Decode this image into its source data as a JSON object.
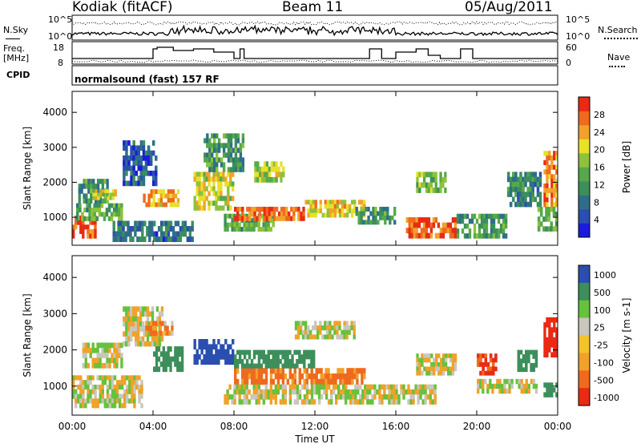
{
  "header": {
    "station": "Kodiak (fitACF)",
    "beam": "Beam 11",
    "date": "05/Aug/2011"
  },
  "status_panels": {
    "nsky_label": "N.Sky",
    "nsearch_label": "N.Search",
    "noise_ticks": [
      "10^5",
      "10^0"
    ],
    "freq_label_1": "Freq.",
    "freq_label_2": "[MHz]",
    "freq_ticks": [
      "18",
      "8"
    ],
    "nave_label": "Nave",
    "nave_ticks": [
      "60",
      "0"
    ],
    "cpid_label": "CPID",
    "cpid_text": "normalsound (fast) 157 RF"
  },
  "colors": {
    "power_scale": [
      "#1b1bde",
      "#2a4fb0",
      "#2f6e8a",
      "#3c8f5a",
      "#56a84a",
      "#8cc23c",
      "#e9e02a",
      "#f0a22a",
      "#ef6a1e",
      "#ea2a14"
    ],
    "velocity_scale": [
      "#ea2a14",
      "#ef6a1e",
      "#f0a22a",
      "#f3c32a",
      "#c9c6bd",
      "#66c23c",
      "#3c8f5a",
      "#2a4fb0"
    ]
  },
  "chart_data": [
    {
      "type": "heatmap",
      "name": "power",
      "ylabel": "Slant Range [km]",
      "y_ticks": [
        "1000",
        "2000",
        "3000",
        "4000"
      ],
      "ylim": [
        200,
        4600
      ],
      "colorbar_label": "Power [dB]",
      "colorbar_ticks": [
        "4",
        "8",
        "12",
        "16",
        "20",
        "24",
        "28"
      ],
      "cmin": 0,
      "cmax": 32,
      "regions": [
        {
          "t0": 0.0,
          "t1": 1.2,
          "r0": 400,
          "r1": 1050,
          "value": 28
        },
        {
          "t0": 0.2,
          "t1": 2.5,
          "r0": 900,
          "r1": 1400,
          "value": 14
        },
        {
          "t0": 0.3,
          "t1": 1.8,
          "r0": 1400,
          "r1": 2100,
          "value": 12
        },
        {
          "t0": 1.0,
          "t1": 2.2,
          "r0": 1500,
          "r1": 1800,
          "value": 20
        },
        {
          "t0": 2.5,
          "t1": 4.2,
          "r0": 1900,
          "r1": 3200,
          "value": 6
        },
        {
          "t0": 3.5,
          "t1": 5.3,
          "r0": 1300,
          "r1": 1800,
          "value": 24
        },
        {
          "t0": 2.0,
          "t1": 6.0,
          "r0": 300,
          "r1": 900,
          "value": 8
        },
        {
          "t0": 6.0,
          "t1": 8.0,
          "r0": 1200,
          "r1": 2300,
          "value": 20
        },
        {
          "t0": 6.5,
          "t1": 8.5,
          "r0": 2300,
          "r1": 3400,
          "value": 12
        },
        {
          "t0": 7.5,
          "t1": 10.0,
          "r0": 600,
          "r1": 1100,
          "value": 14
        },
        {
          "t0": 8.0,
          "t1": 11.5,
          "r0": 900,
          "r1": 1300,
          "value": 28
        },
        {
          "t0": 9.0,
          "t1": 10.5,
          "r0": 2000,
          "r1": 2600,
          "value": 18
        },
        {
          "t0": 11.5,
          "t1": 14.5,
          "r0": 1000,
          "r1": 1500,
          "value": 22
        },
        {
          "t0": 14.0,
          "t1": 16.0,
          "r0": 800,
          "r1": 1300,
          "value": 12
        },
        {
          "t0": 16.5,
          "t1": 19.0,
          "r0": 400,
          "r1": 1000,
          "value": 28
        },
        {
          "t0": 17.0,
          "t1": 18.5,
          "r0": 1700,
          "r1": 2300,
          "value": 16
        },
        {
          "t0": 19.0,
          "t1": 21.5,
          "r0": 400,
          "r1": 1100,
          "value": 12
        },
        {
          "t0": 21.5,
          "t1": 23.2,
          "r0": 1300,
          "r1": 2300,
          "value": 10
        },
        {
          "t0": 23.3,
          "t1": 24.0,
          "r0": 1300,
          "r1": 2900,
          "value": 26
        },
        {
          "t0": 23.0,
          "t1": 24.0,
          "r0": 600,
          "r1": 1300,
          "value": 14
        }
      ]
    },
    {
      "type": "heatmap",
      "name": "velocity",
      "ylabel": "Slant Range [km]",
      "y_ticks": [
        "1000",
        "2000",
        "3000",
        "4000"
      ],
      "ylim": [
        200,
        4600
      ],
      "colorbar_label": "Velocity [m s-1]",
      "colorbar_ticks": [
        "1000",
        "500",
        "100",
        "25",
        "-25",
        "-100",
        "-500",
        "-1000"
      ],
      "regions": [
        {
          "t0": 0.0,
          "t1": 3.5,
          "r0": 400,
          "r1": 1300,
          "value": 0
        },
        {
          "t0": 0.5,
          "t1": 2.5,
          "r0": 1500,
          "r1": 2200,
          "value": 0
        },
        {
          "t0": 2.5,
          "t1": 4.5,
          "r0": 2100,
          "r1": 3200,
          "value": 0
        },
        {
          "t0": 4.0,
          "t1": 5.5,
          "r0": 1400,
          "r1": 2100,
          "value": 400
        },
        {
          "t0": 3.5,
          "t1": 5.0,
          "r0": 2400,
          "r1": 2800,
          "value": -100
        },
        {
          "t0": 6.0,
          "t1": 8.0,
          "r0": 1600,
          "r1": 2300,
          "value": 600
        },
        {
          "t0": 8.0,
          "t1": 14.5,
          "r0": 1050,
          "r1": 1500,
          "value": -150
        },
        {
          "t0": 8.0,
          "t1": 12.0,
          "r0": 1500,
          "r1": 2000,
          "value": 300
        },
        {
          "t0": 7.5,
          "t1": 18.0,
          "r0": 500,
          "r1": 1050,
          "value": 0
        },
        {
          "t0": 11.0,
          "t1": 14.0,
          "r0": 2300,
          "r1": 2800,
          "value": 0
        },
        {
          "t0": 17.0,
          "t1": 19.0,
          "r0": 1300,
          "r1": 1900,
          "value": 0
        },
        {
          "t0": 20.0,
          "t1": 21.0,
          "r0": 1300,
          "r1": 1900,
          "value": -500
        },
        {
          "t0": 22.0,
          "t1": 23.0,
          "r0": 1400,
          "r1": 2000,
          "value": 300
        },
        {
          "t0": 23.3,
          "t1": 24.0,
          "r0": 1800,
          "r1": 2900,
          "value": -600
        },
        {
          "t0": 23.3,
          "t1": 24.0,
          "r0": 700,
          "r1": 1100,
          "value": 300
        },
        {
          "t0": 20.0,
          "t1": 23.0,
          "r0": 800,
          "r1": 1200,
          "value": 0
        }
      ]
    }
  ],
  "x_axis": {
    "label": "Time UT",
    "ticks": [
      "00:00",
      "04:00",
      "08:00",
      "12:00",
      "16:00",
      "20:00",
      "00:00"
    ],
    "tick_hours": [
      0,
      4,
      8,
      12,
      16,
      20,
      24
    ]
  },
  "freq_steps": [
    {
      "t0": 0.0,
      "t1": 4.0,
      "mhz": 10
    },
    {
      "t0": 4.0,
      "t1": 4.2,
      "mhz": 16
    },
    {
      "t0": 4.2,
      "t1": 5.0,
      "mhz": 17
    },
    {
      "t0": 5.0,
      "t1": 6.0,
      "mhz": 15
    },
    {
      "t0": 6.0,
      "t1": 7.0,
      "mhz": 16
    },
    {
      "t0": 7.0,
      "t1": 8.0,
      "mhz": 14
    },
    {
      "t0": 8.0,
      "t1": 8.3,
      "mhz": 10
    },
    {
      "t0": 8.3,
      "t1": 8.5,
      "mhz": 16
    },
    {
      "t0": 8.5,
      "t1": 14.7,
      "mhz": 10
    },
    {
      "t0": 14.7,
      "t1": 15.3,
      "mhz": 16
    },
    {
      "t0": 15.3,
      "t1": 16.0,
      "mhz": 10
    },
    {
      "t0": 16.0,
      "t1": 17.0,
      "mhz": 14
    },
    {
      "t0": 17.0,
      "t1": 17.6,
      "mhz": 16
    },
    {
      "t0": 17.6,
      "t1": 18.2,
      "mhz": 12
    },
    {
      "t0": 18.2,
      "t1": 19.2,
      "mhz": 10
    },
    {
      "t0": 19.2,
      "t1": 19.8,
      "mhz": 16
    },
    {
      "t0": 19.8,
      "t1": 24.0,
      "mhz": 10
    }
  ]
}
